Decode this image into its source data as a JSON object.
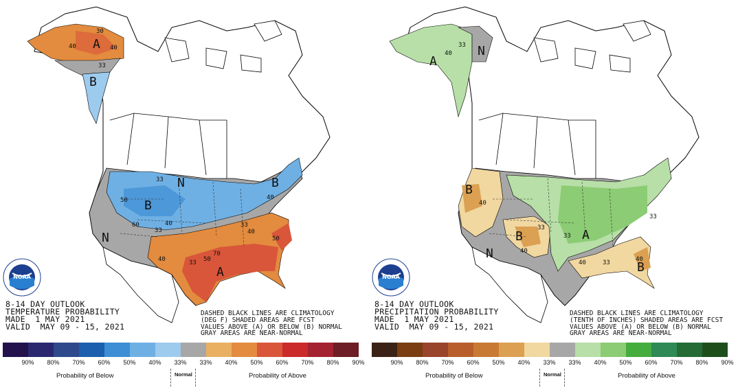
{
  "temperature": {
    "title_lines": [
      "8-14 DAY OUTLOOK",
      "TEMPERATURE PROBABILITY",
      "MADE  1 MAY 2021",
      "VALID  MAY 09 - 15, 2021"
    ],
    "note_lines": [
      "DASHED BLACK LINES ARE CLIMATOLOGY",
      "(DEG F) SHADED AREAS ARE FCST",
      "VALUES ABOVE (A) OR BELOW (B) NORMAL",
      "GRAY AREAS ARE NEAR-NORMAL"
    ],
    "legend_labels": [
      "90%",
      "80%",
      "70%",
      "60%",
      "50%",
      "40%",
      "33%",
      "33%",
      "40%",
      "50%",
      "60%",
      "70%",
      "80%",
      "90%"
    ],
    "legend_colors": [
      "#24124d",
      "#2b2870",
      "#2e4a8c",
      "#1b5fae",
      "#3d8ed4",
      "#6fb0e4",
      "#9dcbee",
      "#a7a7a7",
      "#e9b062",
      "#e38b3e",
      "#d9563a",
      "#cb2b2b",
      "#a32331",
      "#6d1e26"
    ],
    "caption_below": "Probability of Below",
    "caption_normal": "Normal",
    "caption_above": "Probability of Above",
    "map_letters": [
      "A",
      "B",
      "B",
      "B",
      "N",
      "A",
      "N"
    ],
    "map_numbers": [
      "30",
      "40",
      "33",
      "40",
      "50",
      "33",
      "40",
      "33",
      "33",
      "40",
      "40",
      "33",
      "50",
      "70",
      "60",
      "40",
      "50"
    ]
  },
  "precipitation": {
    "title_lines": [
      "8-14 DAY OUTLOOK",
      "PRECIPITATION PROBABILITY",
      "MADE  1 MAY 2021",
      "VALID  MAY 09 - 15, 2021"
    ],
    "note_lines": [
      "DASHED BLACK LINES ARE CLIMATOLOGY",
      "(TENTH OF INCHES) SHADED AREAS ARE FCST",
      "VALUES ABOVE (A) OR BELOW (B) NORMAL",
      "GRAY AREAS ARE NEAR-NORMAL"
    ],
    "legend_labels": [
      "90%",
      "80%",
      "70%",
      "60%",
      "50%",
      "40%",
      "33%",
      "33%",
      "40%",
      "50%",
      "60%",
      "70%",
      "80%",
      "90%"
    ],
    "legend_colors": [
      "#3a2316",
      "#7a3e12",
      "#99452c",
      "#b85e2c",
      "#c87a34",
      "#dba052",
      "#f1d7a0",
      "#a7a7a7",
      "#b7dfa7",
      "#8ccc74",
      "#45ad3e",
      "#2f8a55",
      "#246b35",
      "#1e4f1b"
    ],
    "caption_below": "Probability of Below",
    "caption_normal": "Normal",
    "caption_above": "Probability of Above",
    "map_letters": [
      "A",
      "N",
      "B",
      "B",
      "N",
      "A",
      "B"
    ],
    "map_numbers": [
      "40",
      "33",
      "40",
      "33",
      "33",
      "40",
      "40",
      "33",
      "33",
      "40"
    ]
  },
  "logo_text": "NOAA"
}
